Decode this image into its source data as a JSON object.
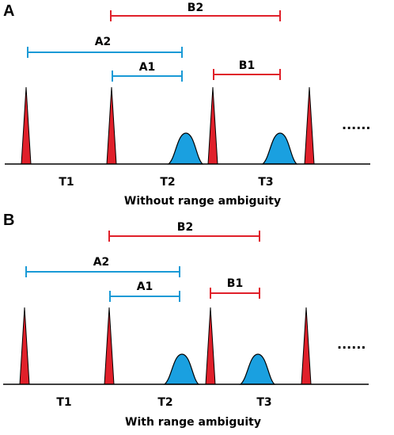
{
  "panels": [
    {
      "letter": "A",
      "caption": "Without range ambiguity",
      "time_labels": [
        "T1",
        "T2",
        "T3"
      ],
      "ranges": [
        {
          "label": "B2",
          "color": "#e0202a"
        },
        {
          "label": "A2",
          "color": "#1a9ad6"
        },
        {
          "label": "A1",
          "color": "#1a9ad6"
        },
        {
          "label": "B1",
          "color": "#e0202a"
        }
      ],
      "continuation": "......"
    },
    {
      "letter": "B",
      "caption": "With range ambiguity",
      "time_labels": [
        "T1",
        "T2",
        "T3"
      ],
      "ranges": [
        {
          "label": "B2",
          "color": "#e0202a"
        },
        {
          "label": "A2",
          "color": "#1a9ad6"
        },
        {
          "label": "A1",
          "color": "#1a9ad6"
        },
        {
          "label": "B1",
          "color": "#e0202a"
        }
      ],
      "continuation": "......"
    }
  ],
  "colors": {
    "pulse": "#e0202a",
    "echo": "#1aa0e0",
    "axis": "#000000"
  }
}
